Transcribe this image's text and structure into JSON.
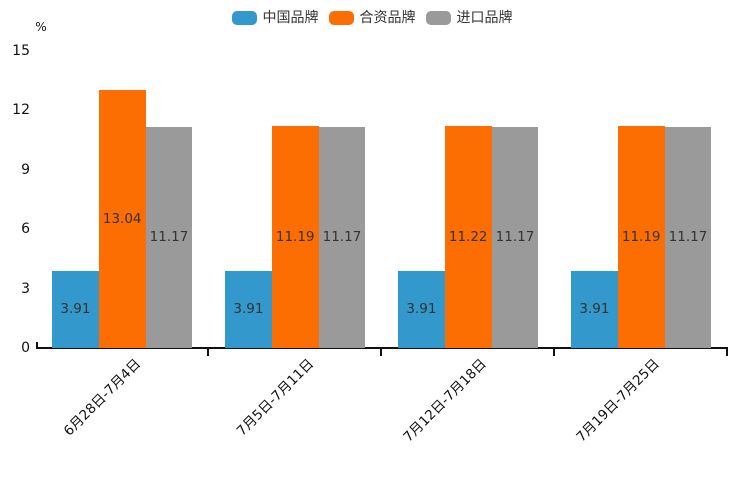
{
  "chart_data": {
    "type": "bar",
    "title": "",
    "unit_label": "%",
    "categories": [
      "6月28日-7月4日",
      "7月5日-7月11日",
      "7月12日-7月18日",
      "7月19日-7月25日"
    ],
    "series": [
      {
        "name": "中国品牌",
        "color": "#3398CB",
        "values": [
          3.91,
          3.91,
          3.91,
          3.91
        ]
      },
      {
        "name": "合资品牌",
        "color": "#FD6E02",
        "values": [
          13.04,
          11.19,
          11.22,
          11.19
        ]
      },
      {
        "name": "进口品牌",
        "color": "#9A9A9A",
        "values": [
          11.17,
          11.17,
          11.17,
          11.17
        ]
      }
    ],
    "ylim": [
      0,
      15
    ],
    "yticks": [
      0,
      3,
      6,
      9,
      12,
      15
    ],
    "grid": false,
    "legend_position": "top-center",
    "value_labels": "inside-center",
    "x_label_rotation_deg": 45
  }
}
